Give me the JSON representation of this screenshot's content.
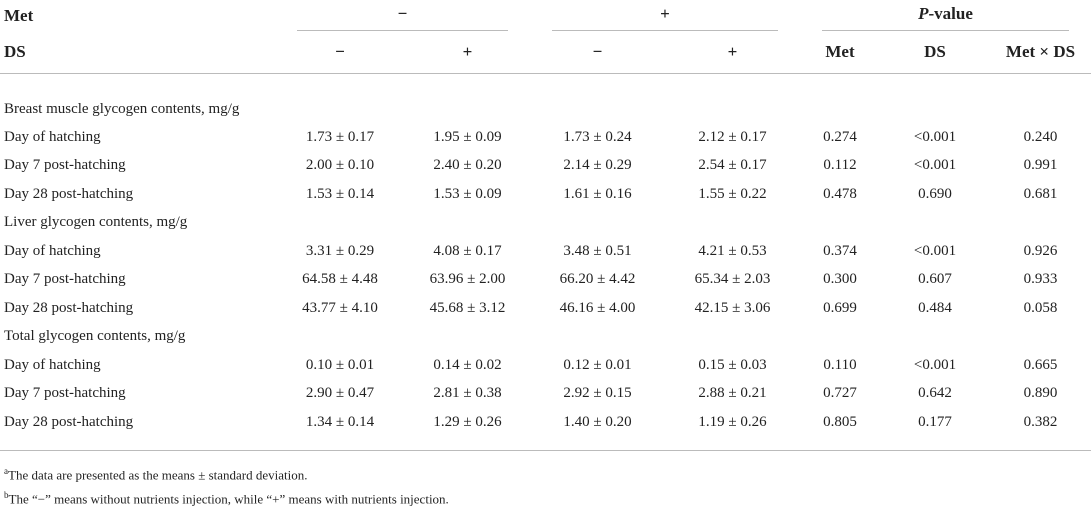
{
  "header": {
    "row1": {
      "label": "Met",
      "groups": [
        "−",
        "+"
      ],
      "pvalue": {
        "italic": "P",
        "rest": "-value"
      }
    },
    "row2": {
      "label": "DS",
      "levels": [
        "−",
        "+",
        "−",
        "+"
      ],
      "pcols": [
        "Met",
        "DS",
        "Met × DS"
      ]
    }
  },
  "sections": [
    {
      "title": "Breast muscle glycogen contents, mg/g",
      "rows": [
        [
          "Day of hatching",
          "1.73 ± 0.17",
          "1.95 ± 0.09",
          "1.73 ± 0.24",
          "2.12 ± 0.17",
          "0.274",
          "<0.001",
          "0.240"
        ],
        [
          "Day 7 post-hatching",
          "2.00 ± 0.10",
          "2.40 ± 0.20",
          "2.14 ± 0.29",
          "2.54 ± 0.17",
          "0.112",
          "<0.001",
          "0.991"
        ],
        [
          "Day 28 post-hatching",
          "1.53 ± 0.14",
          "1.53 ± 0.09",
          "1.61 ± 0.16",
          "1.55 ± 0.22",
          "0.478",
          "0.690",
          "0.681"
        ]
      ]
    },
    {
      "title": "Liver glycogen contents, mg/g",
      "rows": [
        [
          "Day of hatching",
          "3.31 ± 0.29",
          "4.08 ± 0.17",
          "3.48 ± 0.51",
          "4.21 ± 0.53",
          "0.374",
          "<0.001",
          "0.926"
        ],
        [
          "Day 7 post-hatching",
          "64.58 ± 4.48",
          "63.96 ± 2.00",
          "66.20 ± 4.42",
          "65.34 ± 2.03",
          "0.300",
          "0.607",
          "0.933"
        ],
        [
          "Day 28 post-hatching",
          "43.77 ± 4.10",
          "45.68 ± 3.12",
          "46.16 ± 4.00",
          "42.15 ± 3.06",
          "0.699",
          "0.484",
          "0.058"
        ]
      ]
    },
    {
      "title": "Total glycogen contents, mg/g",
      "rows": [
        [
          "Day of hatching",
          "0.10 ± 0.01",
          "0.14 ± 0.02",
          "0.12 ± 0.01",
          "0.15 ± 0.03",
          "0.110",
          "<0.001",
          "0.665"
        ],
        [
          "Day 7 post-hatching",
          "2.90 ± 0.47",
          "2.81 ± 0.38",
          "2.92 ± 0.15",
          "2.88 ± 0.21",
          "0.727",
          "0.642",
          "0.890"
        ],
        [
          "Day 28 post-hatching",
          "1.34 ± 0.14",
          "1.29 ± 0.26",
          "1.40 ± 0.20",
          "1.19 ± 0.26",
          "0.805",
          "0.177",
          "0.382"
        ]
      ]
    }
  ],
  "footnotes": [
    {
      "mark": "a",
      "text": "The data are presented as the means ± standard deviation."
    },
    {
      "mark": "b",
      "text": "The “−” means without nutrients injection, while “+” means with nutrients injection."
    }
  ]
}
